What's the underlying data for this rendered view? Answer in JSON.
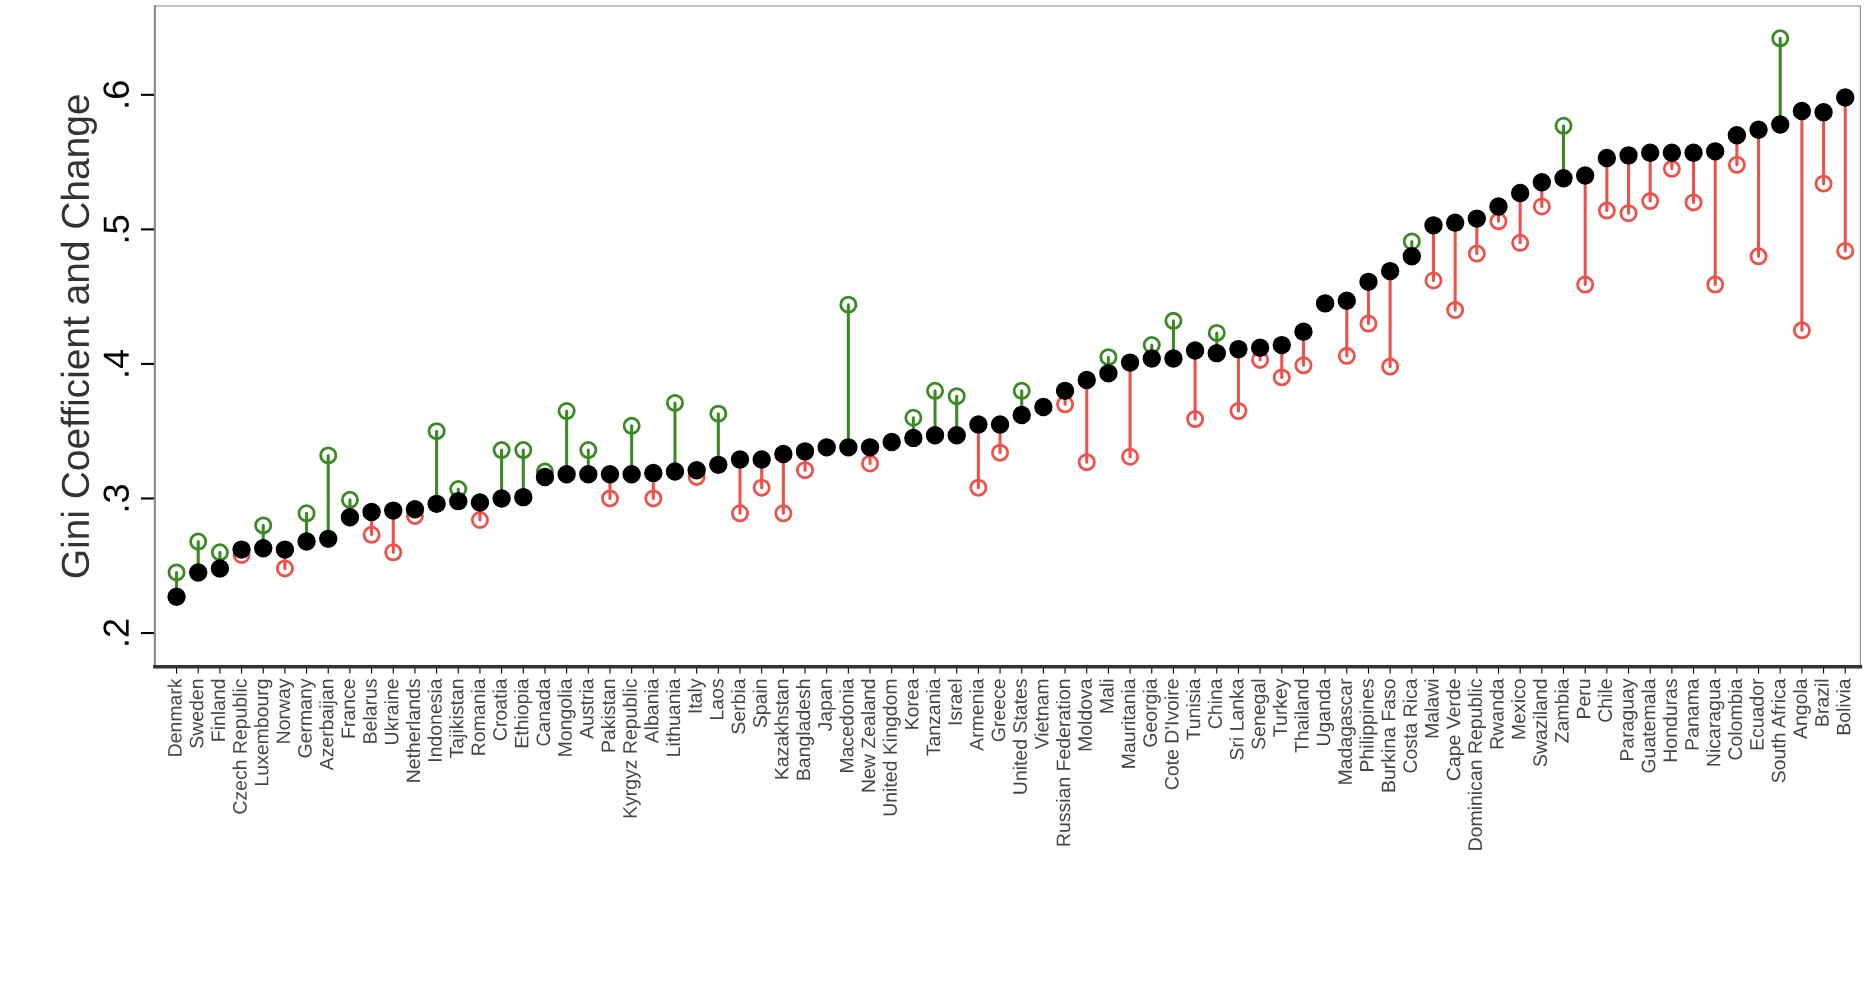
{
  "chart_data": {
    "type": "scatter",
    "ylabel": "Gini Coefficient and Change",
    "categories": [
      "Denmark",
      "Sweden",
      "Finland",
      "Czech Republic",
      "Luxembourg",
      "Norway",
      "Germany",
      "Azerbaijan",
      "France",
      "Belarus",
      "Ukraine",
      "Netherlands",
      "Indonesia",
      "Tajikistan",
      "Romania",
      "Croatia",
      "Ethiopia",
      "Canada",
      "Mongolia",
      "Austria",
      "Pakistan",
      "Kyrgyz Republic",
      "Albania",
      "Lithuania",
      "Italy",
      "Laos",
      "Serbia",
      "Spain",
      "Kazakhstan",
      "Bangladesh",
      "Japan",
      "Macedonia",
      "New Zealand",
      "United Kingdom",
      "Korea",
      "Tanzania",
      "Israel",
      "Armenia",
      "Greece",
      "United States",
      "Vietnam",
      "Russian Federation",
      "Moldova",
      "Mali",
      "Mauritania",
      "Georgia",
      "Cote D'Ivoire",
      "Tunisia",
      "China",
      "Sri Lanka",
      "Senegal",
      "Turkey",
      "Thailand",
      "Uganda",
      "Madagascar",
      "Philippines",
      "Burkina Faso",
      "Costa Rica",
      "Malawi",
      "Cape Verde",
      "Dominican Republic",
      "Rwanda",
      "Mexico",
      "Swaziland",
      "Zambia",
      "Peru",
      "Chile",
      "Paraguay",
      "Guatemala",
      "Honduras",
      "Panama",
      "Nicaragua",
      "Colombia",
      "Ecuador",
      "South Africa",
      "Angola",
      "Brazil",
      "Bolivia"
    ],
    "series": [
      {
        "type": "lollipop",
        "marker": "circle",
        "colors": [
          "#3a8a24",
          "#3a8a24",
          "#3a8a24",
          "#f0504a",
          "#3a8a24",
          "#f0504a",
          "#3a8a24",
          "#3a8a24",
          "#3a8a24",
          "#f0504a",
          "#f0504a",
          "#f0504a",
          "#3a8a24",
          "#3a8a24",
          "#f0504a",
          "#3a8a24",
          "#3a8a24",
          "#3a8a24",
          "#3a8a24",
          "#3a8a24",
          "#f0504a",
          "#3a8a24",
          "#f0504a",
          "#3a8a24",
          "#f0504a",
          "#3a8a24",
          "#f0504a",
          "#f0504a",
          "#f0504a",
          "#f0504a",
          null,
          "#3a8a24",
          "#f0504a",
          null,
          "#3a8a24",
          "#3a8a24",
          "#3a8a24",
          "#f0504a",
          "#f0504a",
          "#3a8a24",
          null,
          "#f0504a",
          "#f0504a",
          "#3a8a24",
          "#f0504a",
          "#3a8a24",
          "#3a8a24",
          "#f0504a",
          "#3a8a24",
          "#f0504a",
          "#f0504a",
          "#f0504a",
          "#f0504a",
          null,
          "#f0504a",
          "#f0504a",
          "#f0504a",
          "#3a8a24",
          "#f0504a",
          "#f0504a",
          "#f0504a",
          "#f0504a",
          "#f0504a",
          "#f0504a",
          "#3a8a24",
          "#f0504a",
          "#f0504a",
          "#f0504a",
          "#f0504a",
          "#f0504a",
          "#f0504a",
          "#f0504a",
          "#f0504a",
          "#f0504a",
          "#3a8a24",
          "#f0504a",
          "#f0504a",
          "#f0504a"
        ],
        "values": [
          0.245,
          0.268,
          0.26,
          0.258,
          0.28,
          0.248,
          0.289,
          0.332,
          0.299,
          0.273,
          0.26,
          0.287,
          0.35,
          0.307,
          0.284,
          0.336,
          0.336,
          0.32,
          0.365,
          0.336,
          0.3,
          0.354,
          0.3,
          0.371,
          0.316,
          0.363,
          0.289,
          0.308,
          0.289,
          0.321,
          null,
          0.444,
          0.326,
          null,
          0.36,
          0.38,
          0.376,
          0.308,
          0.334,
          0.38,
          null,
          0.37,
          0.327,
          0.405,
          0.331,
          0.414,
          0.432,
          0.359,
          0.423,
          0.365,
          0.403,
          0.39,
          0.399,
          null,
          0.406,
          0.43,
          0.398,
          0.491,
          0.462,
          0.44,
          0.482,
          0.506,
          0.49,
          0.517,
          0.577,
          0.459,
          0.514,
          0.512,
          0.521,
          0.545,
          0.52,
          0.459,
          0.548,
          0.48,
          0.642,
          0.425,
          0.534,
          0.484
        ]
      },
      {
        "marker": "circle",
        "color": "#000000",
        "values": [
          0.227,
          0.245,
          0.248,
          0.262,
          0.263,
          0.262,
          0.268,
          0.27,
          0.286,
          0.29,
          0.291,
          0.292,
          0.296,
          0.298,
          0.297,
          0.3,
          0.301,
          0.316,
          0.318,
          0.318,
          0.318,
          0.318,
          0.319,
          0.32,
          0.321,
          0.325,
          0.329,
          0.329,
          0.333,
          0.335,
          0.338,
          0.338,
          0.338,
          0.342,
          0.345,
          0.347,
          0.347,
          0.355,
          0.355,
          0.362,
          0.368,
          0.38,
          0.388,
          0.393,
          0.401,
          0.404,
          0.404,
          0.41,
          0.408,
          0.411,
          0.412,
          0.414,
          0.424,
          0.445,
          0.447,
          0.461,
          0.469,
          0.48,
          0.503,
          0.505,
          0.508,
          0.517,
          0.527,
          0.535,
          0.538,
          0.54,
          0.553,
          0.555,
          0.557,
          0.557,
          0.557,
          0.558,
          0.57,
          0.574,
          0.578,
          0.588,
          0.587,
          0.598
        ]
      }
    ],
    "ylim": [
      0.175,
      0.666
    ],
    "yticks": [
      {
        "value": 0.2,
        "label": ".2"
      },
      {
        "value": 0.3,
        "label": ".3"
      },
      {
        "value": 0.4,
        "label": ".4"
      },
      {
        "value": 0.5,
        "label": ".5"
      },
      {
        "value": 0.6,
        "label": ".6"
      }
    ],
    "grid": false,
    "legend": false
  }
}
